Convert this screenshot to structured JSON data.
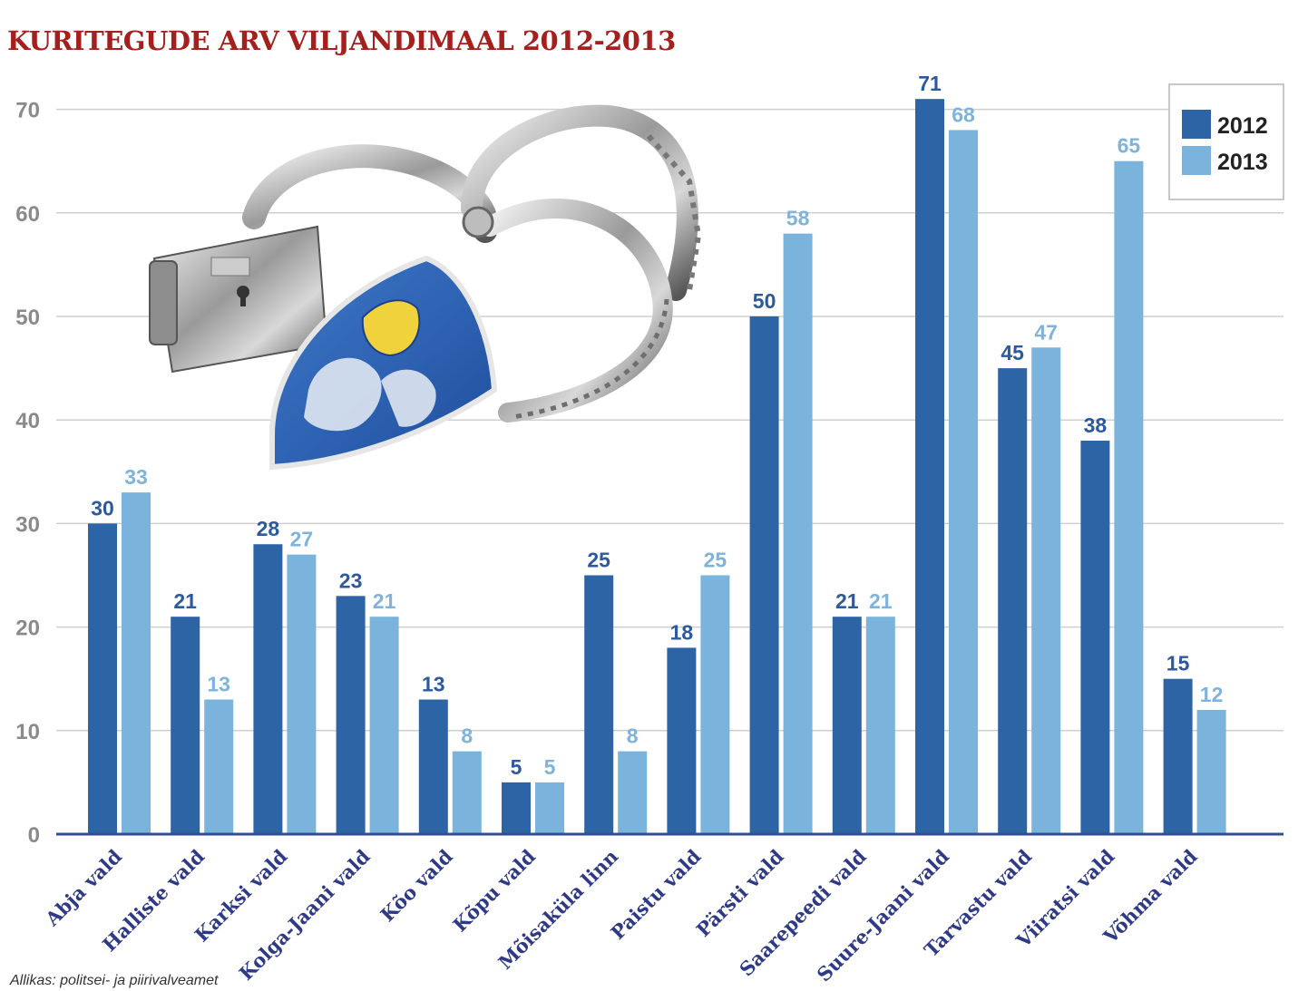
{
  "chart_data": {
    "type": "bar",
    "title": "KURITEGUDE ARV VILJANDIMAAL 2012-2013",
    "categories": [
      "Abja vald",
      "Halliste vald",
      "Karksi vald",
      "Kolga-Jaani vald",
      "Kõo vald",
      "Kõpu vald",
      "Mõisaküla linn",
      "Paistu vald",
      "Pärsti vald",
      "Saarepeedi vald",
      "Suure-Jaani vald",
      "Tarvastu vald",
      "Viiratsi vald",
      "Võhma vald"
    ],
    "series": [
      {
        "name": "2012",
        "color": "#2d64a6",
        "values": [
          30,
          21,
          28,
          23,
          13,
          5,
          25,
          18,
          50,
          21,
          71,
          45,
          38,
          15
        ]
      },
      {
        "name": "2013",
        "color": "#7ab4dc",
        "values": [
          33,
          13,
          27,
          21,
          8,
          5,
          8,
          25,
          58,
          21,
          68,
          47,
          65,
          12
        ]
      }
    ],
    "yticks": [
      0,
      10,
      20,
      30,
      40,
      50,
      60,
      70
    ],
    "ylim": [
      0,
      70
    ],
    "grid": true,
    "legend": "top-right",
    "source": "Allikas: politsei- ja piirivalveamet",
    "image": "handcuffs-and-police-badge"
  }
}
